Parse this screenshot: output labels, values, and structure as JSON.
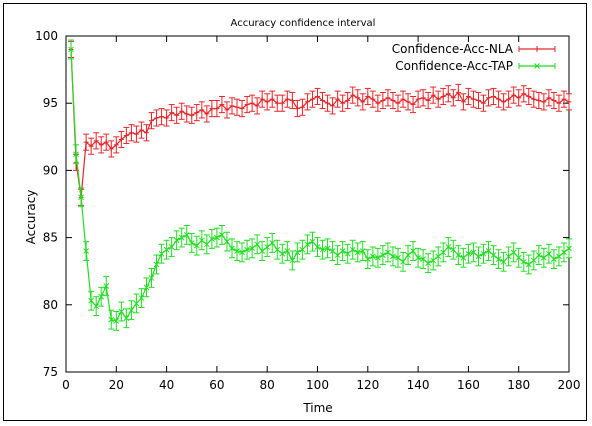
{
  "chart_data": {
    "type": "line",
    "title": "Accuracy confidence interval",
    "xlabel": "Time",
    "ylabel": "Accuracy",
    "xlim": [
      0,
      200
    ],
    "ylim": [
      75,
      100
    ],
    "xticks": [
      0,
      20,
      40,
      60,
      80,
      100,
      120,
      140,
      160,
      180,
      200
    ],
    "yticks": [
      75,
      80,
      85,
      90,
      95,
      100
    ],
    "legend_position": "top-right",
    "grid": false,
    "series": [
      {
        "name": "Confidence-Acc-NLA",
        "color": "#e8262a",
        "marker": "plus",
        "error": 0.6,
        "x": [
          2,
          4,
          6,
          8,
          10,
          12,
          14,
          16,
          18,
          20,
          22,
          24,
          26,
          28,
          30,
          32,
          34,
          36,
          38,
          40,
          42,
          44,
          46,
          48,
          50,
          52,
          54,
          56,
          58,
          60,
          62,
          64,
          66,
          68,
          70,
          72,
          74,
          76,
          78,
          80,
          82,
          84,
          86,
          88,
          90,
          92,
          94,
          96,
          98,
          100,
          102,
          104,
          106,
          108,
          110,
          112,
          114,
          116,
          118,
          120,
          122,
          124,
          126,
          128,
          130,
          132,
          134,
          136,
          138,
          140,
          142,
          144,
          146,
          148,
          150,
          152,
          154,
          156,
          158,
          160,
          162,
          164,
          166,
          168,
          170,
          172,
          174,
          176,
          178,
          180,
          182,
          184,
          186,
          188,
          190,
          192,
          194,
          196,
          198,
          200
        ],
        "values": [
          99.0,
          90.6,
          88.0,
          92.1,
          91.8,
          92.2,
          91.9,
          92.1,
          91.6,
          91.9,
          92.3,
          92.6,
          92.8,
          92.7,
          93.0,
          92.8,
          93.7,
          93.9,
          94.0,
          93.9,
          94.3,
          94.1,
          94.4,
          94.2,
          94.1,
          94.3,
          94.5,
          94.2,
          94.6,
          94.6,
          94.9,
          94.5,
          94.8,
          94.7,
          94.6,
          94.9,
          95.0,
          94.8,
          95.3,
          95.1,
          95.3,
          95.0,
          95.0,
          95.3,
          95.2,
          94.6,
          94.7,
          95.1,
          95.3,
          95.5,
          95.2,
          95.0,
          94.8,
          95.3,
          95.0,
          95.2,
          95.6,
          95.4,
          95.1,
          95.5,
          95.3,
          95.0,
          95.2,
          95.4,
          95.2,
          95.0,
          95.3,
          95.1,
          94.9,
          95.3,
          95.4,
          95.2,
          95.6,
          95.3,
          95.5,
          95.7,
          95.4,
          95.8,
          95.1,
          95.5,
          95.3,
          95.2,
          95.0,
          95.4,
          95.5,
          95.3,
          95.1,
          95.3,
          95.6,
          95.4,
          95.7,
          95.5,
          95.3,
          95.2,
          95.1,
          95.4,
          95.2,
          95.0,
          95.3,
          95.1
        ]
      },
      {
        "name": "Confidence-Acc-TAP",
        "color": "#22dd22",
        "marker": "x",
        "error": 0.7,
        "x": [
          2,
          4,
          6,
          8,
          10,
          12,
          14,
          16,
          18,
          20,
          22,
          24,
          26,
          28,
          30,
          32,
          34,
          36,
          38,
          40,
          42,
          44,
          46,
          48,
          50,
          52,
          54,
          56,
          58,
          60,
          62,
          64,
          66,
          68,
          70,
          72,
          74,
          76,
          78,
          80,
          82,
          84,
          86,
          88,
          90,
          92,
          94,
          96,
          98,
          100,
          102,
          104,
          106,
          108,
          110,
          112,
          114,
          116,
          118,
          120,
          122,
          124,
          126,
          128,
          130,
          132,
          134,
          136,
          138,
          140,
          142,
          144,
          146,
          148,
          150,
          152,
          154,
          156,
          158,
          160,
          162,
          164,
          166,
          168,
          170,
          172,
          174,
          176,
          178,
          180,
          182,
          184,
          186,
          188,
          190,
          192,
          194,
          196,
          198,
          200
        ],
        "values": [
          99.0,
          91.2,
          88.0,
          84.0,
          80.3,
          79.9,
          80.6,
          81.4,
          78.9,
          78.8,
          79.5,
          79.0,
          79.6,
          80.1,
          80.5,
          81.3,
          82.0,
          83.0,
          83.8,
          84.1,
          84.3,
          84.8,
          85.0,
          85.2,
          84.6,
          84.4,
          84.8,
          84.5,
          84.9,
          85.0,
          85.2,
          84.7,
          84.2,
          84.0,
          83.9,
          84.1,
          84.2,
          84.5,
          84.0,
          84.3,
          84.6,
          84.1,
          83.8,
          84.0,
          83.3,
          83.9,
          84.1,
          84.5,
          84.7,
          84.3,
          84.1,
          84.2,
          84.0,
          83.7,
          84.0,
          83.8,
          84.1,
          83.9,
          84.0,
          83.4,
          83.6,
          83.5,
          83.7,
          83.9,
          83.6,
          83.5,
          83.2,
          83.7,
          84.0,
          83.5,
          83.4,
          83.1,
          83.3,
          83.6,
          83.9,
          84.3,
          84.1,
          83.7,
          83.5,
          83.8,
          83.9,
          83.6,
          83.8,
          84.0,
          83.7,
          83.4,
          83.2,
          83.6,
          83.9,
          83.5,
          83.2,
          83.0,
          83.3,
          83.7,
          83.5,
          83.8,
          83.4,
          83.6,
          83.9,
          84.2
        ]
      }
    ]
  }
}
